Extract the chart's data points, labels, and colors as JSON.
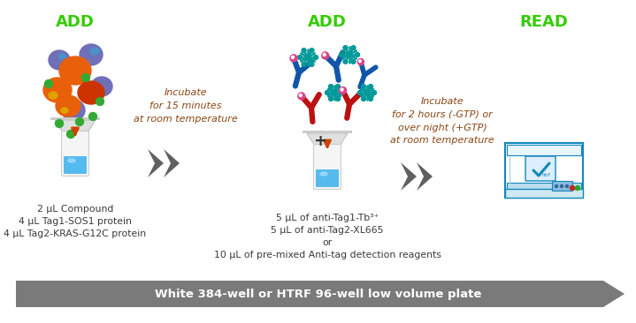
{
  "bg_color": "#ffffff",
  "add1_label": "ADD",
  "add2_label": "ADD",
  "read_label": "READ",
  "label_color": "#33cc00",
  "arrow_color": "#606060",
  "incubate1_text": "Incubate\nfor 15 minutes\nat room temperature",
  "incubate2_text": "Incubate\nfor 2 hours (-GTP) or\nover night (+GTP)\nat room temperature",
  "bottom_text1_line1": "2 μL Compound",
  "bottom_text1_line2": "4 μL Tag1-SOS1 protein",
  "bottom_text1_line3": "4 μL Tag2-KRAS-G12C protein",
  "bottom_text2_line1": "5 μL of anti-Tag1-Tb³⁺",
  "bottom_text2_line2": "5 μL of anti-Tag2-XL665",
  "bottom_text2_line3": "or",
  "bottom_text2_line4": "10 μL of pre-mixed Anti-tag detection reagents",
  "banner_text": "White 384-well or HTRF 96-well low volume plate",
  "banner_color": "#7a7a7a",
  "banner_text_color": "#ffffff",
  "text_color": "#3a3a3a",
  "incubate_color": "#8b4513",
  "orange_blob_color": "#e8600a",
  "orange_blob_color2": "#cc3300",
  "purple_blob_color": "#7070b8",
  "blue_highlight_color": "#4499cc",
  "green_dot_color": "#33aa33",
  "yellow_dot_color": "#ddaa00",
  "blue_liquid_color": "#55bbee",
  "blue_ab_color": "#1155aa",
  "red_ab_color": "#bb1111",
  "teal_color": "#009999",
  "pink_ball_color": "#dd4488",
  "reader_outline": "#1188bb",
  "reader_fill": "#ffffff",
  "reader_screen_fill": "#ddeeff"
}
